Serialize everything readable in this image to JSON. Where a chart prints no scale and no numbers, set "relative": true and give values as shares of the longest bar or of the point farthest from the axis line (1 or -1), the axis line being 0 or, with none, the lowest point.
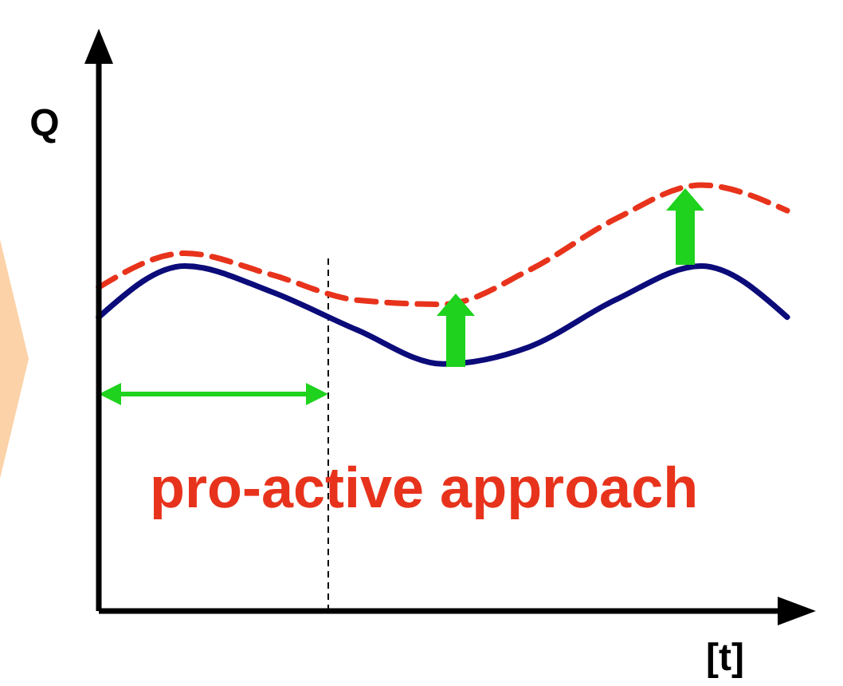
{
  "chart_data": {
    "type": "line",
    "relative": true,
    "xlabel": "[t]",
    "ylabel": "Q",
    "categories": [
      null,
      null,
      null,
      null,
      null,
      null,
      null,
      null,
      null
    ],
    "series": [
      {
        "color": "#0b0b7a",
        "line_style": "solid",
        "values": [
          0.69,
          0.81,
          0.75,
          0.66,
          0.58,
          0.62,
          0.73,
          0.81,
          0.69
        ]
      },
      {
        "color": "#e8331c",
        "line_style": "dashed",
        "values": [
          0.76,
          0.84,
          0.79,
          0.73,
          0.72,
          0.8,
          0.92,
          1,
          0.94
        ]
      }
    ],
    "annotations": [
      "pro-active approach"
    ]
  }
}
